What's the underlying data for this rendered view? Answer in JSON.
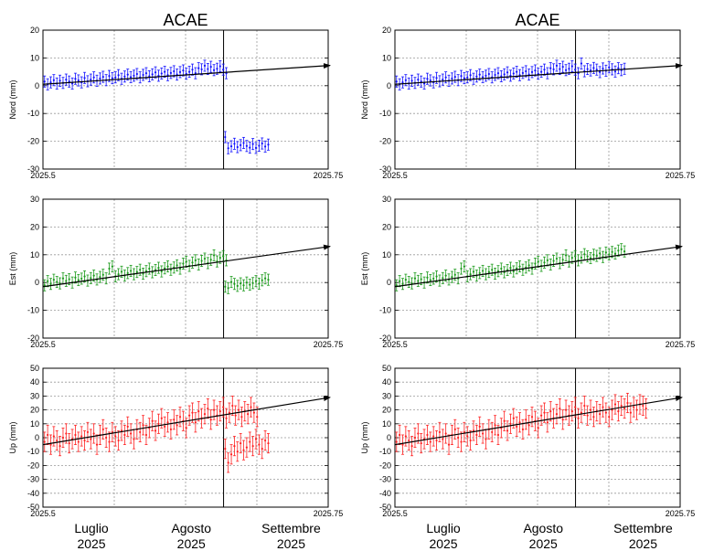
{
  "chart_data": [
    {
      "type": "scatter",
      "title": "ACAE",
      "ylabel": "Nord (mm)",
      "xlim": [
        2025.5,
        2025.75
      ],
      "ylim": [
        -30,
        20
      ],
      "yticks": [
        20,
        10,
        0,
        -10,
        -20,
        -30
      ],
      "xtick_labels": [
        "2025.5",
        "2025.75"
      ],
      "color": "#1010ff",
      "grid": true,
      "event_x": 2025.6583,
      "trend": {
        "x0": 2025.5,
        "y0": 0.5,
        "x1": 2025.75,
        "y1": 7.3
      },
      "series": [
        {
          "x0": 2025.5014,
          "dx": 0.0027,
          "values": [
            1.5,
            0.5,
            1.2,
            2.0,
            0.8,
            1.8,
            1.0,
            2.2,
            1.5,
            0.8,
            2.5,
            1.9,
            1.2,
            2.8,
            1.6,
            2.2,
            3.0,
            1.8,
            2.6,
            3.2,
            2.0,
            3.5,
            2.7,
            3.0,
            3.8,
            2.5,
            3.3,
            4.0,
            3.1,
            3.6,
            4.2,
            3.0,
            3.9,
            4.5,
            3.4,
            4.1,
            4.8,
            3.6,
            4.4,
            5.0,
            3.8,
            4.6,
            5.2,
            4.0,
            4.9,
            5.5,
            4.3,
            5.0,
            5.8,
            4.5,
            6.3,
            5.9,
            7.2,
            6.0,
            6.8,
            5.6,
            6.1,
            7.0,
            5.8,
            4.5
          ],
          "err": 2
        },
        {
          "x0": 2025.6597,
          "dx": 0.0027,
          "values": [
            -18.5,
            -22.5,
            -21.8,
            -20.9,
            -22.1,
            -21.4,
            -20.6,
            -21.7,
            -22.3,
            -21.0,
            -22.4,
            -21.6,
            -20.8,
            -21.9,
            -21.2
          ],
          "err": 2
        }
      ]
    },
    {
      "type": "scatter",
      "title": "ACAE",
      "ylabel": "Nord (mm)",
      "xlim": [
        2025.5,
        2025.75
      ],
      "ylim": [
        -30,
        20
      ],
      "yticks": [
        20,
        10,
        0,
        -10,
        -20,
        -30
      ],
      "xtick_labels": [
        "2025.5",
        "2025.75"
      ],
      "color": "#1010ff",
      "grid": true,
      "event_x": 2025.6583,
      "trend": {
        "x0": 2025.5,
        "y0": 0.5,
        "x1": 2025.75,
        "y1": 7.3
      },
      "series": [
        {
          "x0": 2025.5014,
          "dx": 0.0027,
          "values": [
            1.5,
            0.5,
            1.2,
            2.0,
            0.8,
            1.8,
            1.0,
            2.2,
            1.5,
            0.8,
            2.5,
            1.9,
            1.2,
            2.8,
            1.6,
            2.2,
            3.0,
            1.8,
            2.6,
            3.2,
            2.0,
            3.5,
            2.7,
            3.0,
            3.8,
            2.5,
            3.3,
            4.0,
            3.1,
            3.6,
            4.2,
            3.0,
            3.9,
            4.5,
            3.4,
            4.1,
            4.8,
            3.6,
            4.4,
            5.0,
            3.8,
            4.6,
            5.2,
            4.0,
            4.9,
            5.5,
            4.3,
            5.0,
            5.8,
            4.5,
            6.3,
            5.9,
            7.2,
            6.0,
            6.8,
            5.6,
            6.1,
            7.0,
            5.8,
            4.5,
            8.0,
            5.2,
            6.0,
            5.5,
            6.4,
            5.8,
            4.9,
            6.2,
            5.4,
            6.6,
            5.9,
            5.1,
            6.3,
            5.6,
            6.1
          ],
          "err": 2
        }
      ]
    },
    {
      "type": "scatter",
      "ylabel": "Est (mm)",
      "xlim": [
        2025.5,
        2025.75
      ],
      "ylim": [
        -20,
        30
      ],
      "yticks": [
        30,
        20,
        10,
        0,
        -10,
        -20
      ],
      "xtick_labels": [
        "2025.5",
        "2025.75"
      ],
      "color": "#1a9a1a",
      "grid": true,
      "event_x": 2025.6583,
      "trend": {
        "x0": 2025.5,
        "y0": -1.5,
        "x1": 2025.75,
        "y1": 13.0
      },
      "series": [
        {
          "x0": 2025.5014,
          "dx": 0.0027,
          "values": [
            -1.0,
            0.5,
            -0.5,
            1.0,
            0.2,
            -0.3,
            1.5,
            0.6,
            1.2,
            0.0,
            1.8,
            0.9,
            1.4,
            2.2,
            0.7,
            1.6,
            2.5,
            1.1,
            2.0,
            2.8,
            1.5,
            5.0,
            5.8,
            2.2,
            3.0,
            3.9,
            2.5,
            3.4,
            4.2,
            3.0,
            3.8,
            4.6,
            3.2,
            4.1,
            5.0,
            3.7,
            4.5,
            5.3,
            4.0,
            5.1,
            5.8,
            4.6,
            5.4,
            6.2,
            5.0,
            6.8,
            7.5,
            6.0,
            7.2,
            8.0,
            6.5,
            7.8,
            8.6,
            7.0,
            8.2,
            9.8,
            7.6,
            8.9,
            9.5,
            8.0
          ],
          "err": 2
        },
        {
          "x0": 2025.6597,
          "dx": 0.0027,
          "values": [
            -1.5,
            -2.0,
            0.2,
            -0.5,
            -1.2,
            -0.3,
            -1.0,
            0.0,
            -0.8,
            -0.2,
            0.5,
            -0.4,
            0.8,
            1.5,
            1.0
          ],
          "err": 2
        }
      ]
    },
    {
      "type": "scatter",
      "ylabel": "Est (mm)",
      "xlim": [
        2025.5,
        2025.75
      ],
      "ylim": [
        -20,
        30
      ],
      "yticks": [
        30,
        20,
        10,
        0,
        -10,
        -20
      ],
      "xtick_labels": [
        "2025.5",
        "2025.75"
      ],
      "color": "#1a9a1a",
      "grid": true,
      "event_x": 2025.6583,
      "trend": {
        "x0": 2025.5,
        "y0": -1.5,
        "x1": 2025.75,
        "y1": 13.0
      },
      "series": [
        {
          "x0": 2025.5014,
          "dx": 0.0027,
          "values": [
            -1.0,
            0.5,
            -0.5,
            1.0,
            0.2,
            -0.3,
            1.5,
            0.6,
            1.2,
            0.0,
            1.8,
            0.9,
            1.4,
            2.2,
            0.7,
            1.6,
            2.5,
            1.1,
            2.0,
            2.8,
            1.5,
            5.0,
            5.8,
            2.2,
            3.0,
            3.9,
            2.5,
            3.4,
            4.2,
            3.0,
            3.8,
            4.6,
            3.2,
            4.1,
            5.0,
            3.7,
            4.5,
            5.3,
            4.0,
            5.1,
            5.8,
            4.6,
            5.4,
            6.2,
            5.0,
            6.8,
            7.5,
            6.0,
            7.2,
            8.0,
            6.5,
            7.8,
            8.6,
            7.0,
            8.2,
            9.8,
            7.6,
            8.9,
            9.5,
            8.0,
            9.0,
            10.2,
            9.4,
            8.8,
            10.0,
            9.6,
            10.5,
            9.2,
            10.8,
            10.1,
            11.0,
            10.4,
            11.5,
            12.0,
            11.2
          ],
          "err": 2
        }
      ]
    },
    {
      "type": "scatter",
      "ylabel": "Up (mm)",
      "xlim": [
        2025.5,
        2025.75
      ],
      "ylim": [
        -50,
        50
      ],
      "yticks": [
        50,
        40,
        30,
        20,
        10,
        0,
        -10,
        -20,
        -30,
        -40,
        -50
      ],
      "xtick_labels": [
        "2025.5",
        "2025.75"
      ],
      "color": "#ff2020",
      "grid": true,
      "event_x": 2025.6583,
      "trend": {
        "x0": 2025.5,
        "y0": -5,
        "x1": 2025.75,
        "y1": 29
      },
      "series": [
        {
          "x0": 2025.5014,
          "dx": 0.0027,
          "values": [
            -3,
            2,
            -5,
            1,
            -2,
            -6,
            0,
            3,
            -4,
            -1,
            2,
            -3,
            1,
            -2,
            4,
            -1,
            3,
            -5,
            2,
            6,
            0,
            -3,
            4,
            1,
            -2,
            5,
            2,
            8,
            3,
            -1,
            6,
            4,
            9,
            2,
            7,
            12,
            5,
            10,
            14,
            8,
            11,
            6,
            13,
            9,
            15,
            12,
            7,
            16,
            18,
            11,
            19,
            14,
            17,
            21,
            13,
            20,
            16,
            19,
            22,
            14,
            18,
            23,
            16,
            20,
            15,
            19,
            17,
            22,
            18,
            15
          ],
          "err": 7
        },
        {
          "x0": 2025.6597,
          "dx": 0.0027,
          "values": [
            -8,
            -18,
            -12,
            -6,
            -10,
            -4,
            -9,
            -7,
            -3,
            -6,
            -1,
            -5,
            -8,
            -2,
            -4
          ],
          "err": 7
        }
      ]
    },
    {
      "type": "scatter",
      "ylabel": "Up (mm)",
      "xlim": [
        2025.5,
        2025.75
      ],
      "ylim": [
        -50,
        50
      ],
      "yticks": [
        50,
        40,
        30,
        20,
        10,
        0,
        -10,
        -20,
        -30,
        -40,
        -50
      ],
      "xtick_labels": [
        "2025.5",
        "2025.75"
      ],
      "color": "#ff2020",
      "grid": true,
      "event_x": 2025.6583,
      "trend": {
        "x0": 2025.5,
        "y0": -5,
        "x1": 2025.75,
        "y1": 29
      },
      "series": [
        {
          "x0": 2025.5014,
          "dx": 0.0027,
          "values": [
            -3,
            2,
            -5,
            1,
            -2,
            -6,
            0,
            3,
            -4,
            -1,
            2,
            -3,
            1,
            -2,
            4,
            -1,
            3,
            -5,
            2,
            6,
            0,
            -3,
            4,
            1,
            -2,
            5,
            2,
            8,
            3,
            -1,
            6,
            4,
            9,
            2,
            7,
            12,
            5,
            10,
            14,
            8,
            11,
            6,
            13,
            9,
            15,
            12,
            7,
            16,
            18,
            11,
            19,
            14,
            17,
            21,
            13,
            20,
            16,
            19,
            22,
            14,
            18,
            23,
            16,
            20,
            15,
            19,
            17,
            22,
            18,
            15,
            20,
            24,
            19,
            23,
            21,
            25,
            18,
            22,
            20,
            24,
            23,
            21
          ],
          "err": 7
        }
      ]
    }
  ],
  "month_axis": [
    {
      "month": "Luglio",
      "year": "2025"
    },
    {
      "month": "Agosto",
      "year": "2025"
    },
    {
      "month": "Settembre",
      "year": "2025"
    }
  ]
}
